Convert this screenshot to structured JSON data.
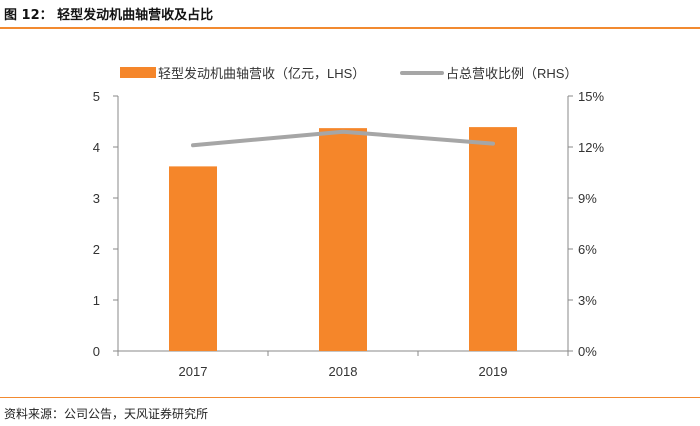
{
  "figure": {
    "title": "图 12：  轻型发动机曲轴营收及占比",
    "source": "资料来源：公司公告，天风证券研究所"
  },
  "colors": {
    "bar": "#f5862a",
    "line": "#a6a6a6",
    "axis": "#888888",
    "accent_rule": "#f28a30"
  },
  "chart_data": {
    "type": "bar",
    "categories": [
      "2017",
      "2018",
      "2019"
    ],
    "series": [
      {
        "name": "轻型发动机曲轴营收（亿元，LHS）",
        "kind": "bar",
        "axis": "left",
        "values": [
          3.62,
          4.37,
          4.39
        ]
      },
      {
        "name": "占总营收比例（RHS）",
        "kind": "line",
        "axis": "right",
        "values": [
          0.121,
          0.129,
          0.122
        ]
      }
    ],
    "left_axis": {
      "ylim": [
        0,
        5
      ],
      "ticks": [
        "0",
        "1",
        "2",
        "3",
        "4",
        "5"
      ],
      "tick_values": [
        0,
        1,
        2,
        3,
        4,
        5
      ]
    },
    "right_axis": {
      "ylim": [
        0,
        0.15
      ],
      "ticks": [
        "0%",
        "3%",
        "6%",
        "9%",
        "12%",
        "15%"
      ],
      "tick_values": [
        0,
        0.03,
        0.06,
        0.09,
        0.12,
        0.15
      ]
    },
    "legend": {
      "placement": "top"
    },
    "grid": false
  }
}
